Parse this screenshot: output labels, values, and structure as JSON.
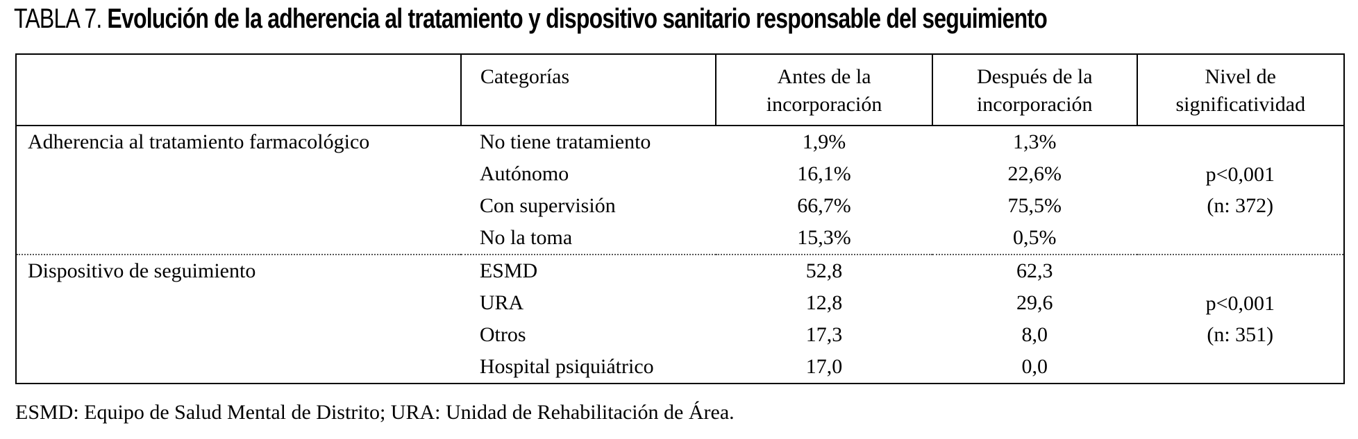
{
  "title": {
    "label": "TABLA 7.",
    "text": "Evolución de la adherencia al tratamiento y dispositivo sanitario responsable del seguimiento"
  },
  "table": {
    "headers": {
      "row_label": "",
      "categories": "Categorías",
      "before": "Antes de la incorporación",
      "after": "Después de la incorporación",
      "significance": "Nivel de significatividad"
    },
    "sections": [
      {
        "label": "Adherencia al tratamiento farmacológico",
        "rows": [
          {
            "category": "No tiene tratamiento",
            "before": "1,9%",
            "after": "1,3%"
          },
          {
            "category": "Autónomo",
            "before": "16,1%",
            "after": "22,6%"
          },
          {
            "category": "Con supervisión",
            "before": "66,7%",
            "after": "75,5%"
          },
          {
            "category": "No la toma",
            "before": "15,3%",
            "after": "0,5%"
          }
        ],
        "significance": {
          "p": "p<0,001",
          "n": "(n: 372)"
        }
      },
      {
        "label": "Dispositivo de seguimiento",
        "rows": [
          {
            "category": "ESMD",
            "before": "52,8",
            "after": "62,3"
          },
          {
            "category": "URA",
            "before": "12,8",
            "after": "29,6"
          },
          {
            "category": "Otros",
            "before": "17,3",
            "after": "8,0"
          },
          {
            "category": "Hospital psiquiátrico",
            "before": "17,0",
            "after": "0,0"
          }
        ],
        "significance": {
          "p": "p<0,001",
          "n": "(n: 351)"
        }
      }
    ]
  },
  "footnote": "ESMD: Equipo de Salud Mental de Distrito; URA: Unidad de Rehabilitación de Área.",
  "colors": {
    "text": "#000000",
    "background": "#ffffff",
    "border": "#000000",
    "section_divider": "#555555"
  }
}
